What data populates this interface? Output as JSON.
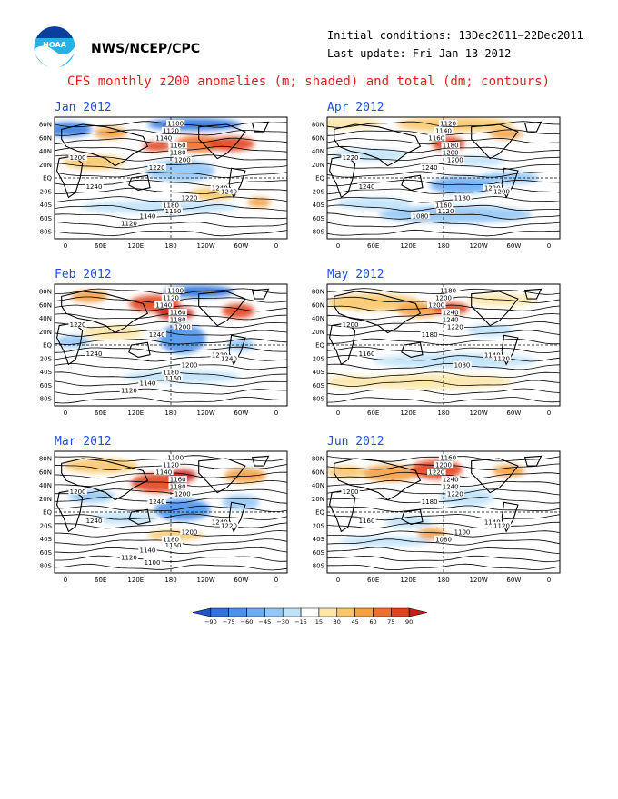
{
  "header": {
    "org": "NWS/NCEP/CPC",
    "initial_conditions": "Initial conditions: 13Dec2011−22Dec2011",
    "last_update": "Last update: Fri Jan 13 2012",
    "title": "CFS monthly z200 anomalies (m; shaded) and total (dm; contours)",
    "logo_icon": "noaa-logo-icon"
  },
  "axes": {
    "lat_labels": [
      "80N",
      "60N",
      "40N",
      "20N",
      "EQ",
      "20S",
      "40S",
      "60S",
      "80S"
    ],
    "lon_labels": [
      "0",
      "60E",
      "120E",
      "180",
      "120W",
      "60W",
      "0"
    ]
  },
  "panels": [
    {
      "title": "Jan 2012",
      "contour_labels": [
        "1100",
        "1120",
        "1140",
        "1160",
        "1180",
        "1200",
        "1200",
        "1220",
        "1240",
        "1240",
        "1240",
        "1220",
        "1180",
        "1160",
        "1140",
        "1120"
      ]
    },
    {
      "title": "Apr 2012",
      "contour_labels": [
        "1120",
        "1140",
        "1160",
        "1180",
        "1200",
        "1200",
        "1220",
        "1240",
        "1240",
        "1220",
        "1200",
        "1180",
        "1160",
        "1120",
        "1080"
      ]
    },
    {
      "title": "Feb 2012",
      "contour_labels": [
        "1100",
        "1120",
        "1140",
        "1160",
        "1180",
        "1200",
        "1220",
        "1240",
        "1240",
        "1220",
        "1240",
        "1200",
        "1180",
        "1160",
        "1140",
        "1120"
      ]
    },
    {
      "title": "May 2012",
      "contour_labels": [
        "1180",
        "1200",
        "1200",
        "1240",
        "1240",
        "1220",
        "1200",
        "1180",
        "1160",
        "1140",
        "1120",
        "1080"
      ]
    },
    {
      "title": "Mar 2012",
      "contour_labels": [
        "1100",
        "1120",
        "1140",
        "1160",
        "1180",
        "1200",
        "1200",
        "1240",
        "1240",
        "1240",
        "1220",
        "1200",
        "1180",
        "1160",
        "1140",
        "1120",
        "1100"
      ]
    },
    {
      "title": "Jun 2012",
      "contour_labels": [
        "1160",
        "1200",
        "1220",
        "1240",
        "1240",
        "1220",
        "1200",
        "1180",
        "1160",
        "1140",
        "1120",
        "1100",
        "1080"
      ]
    }
  ],
  "colorbar": {
    "ticks": [
      "−90",
      "−75",
      "−60",
      "−45",
      "−30",
      "−15",
      "15",
      "30",
      "45",
      "60",
      "75",
      "90"
    ],
    "colors": [
      "#1f55c8",
      "#2f74dc",
      "#4b92ec",
      "#6cacf2",
      "#93c7f7",
      "#bfe2fb",
      "#ffffff",
      "#fde6a6",
      "#f9c76a",
      "#f5a042",
      "#ee702f",
      "#e2431f",
      "#c71e16"
    ]
  }
}
